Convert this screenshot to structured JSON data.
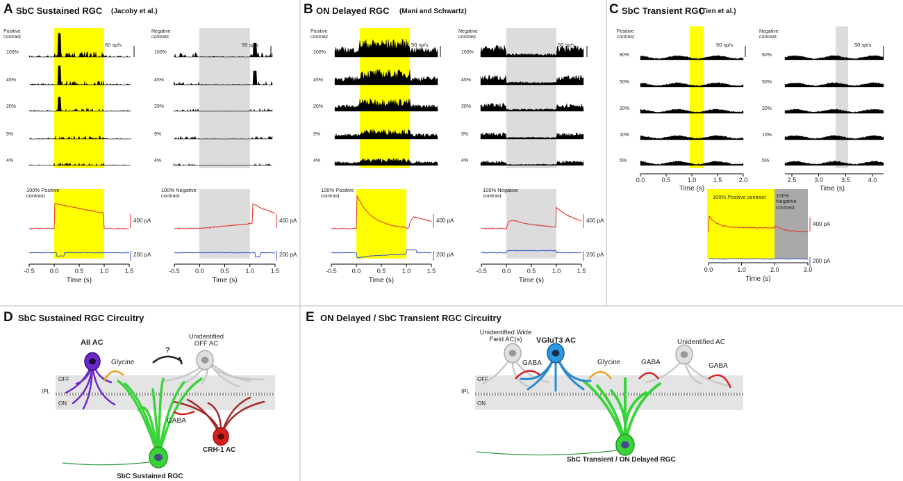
{
  "panels": [
    {
      "letter": "A",
      "title": "SbC Sustained RGC",
      "citation": "(Jacoby et al.)",
      "columns": [
        {
          "label": "Positive contrast",
          "scale": "50 sp/s"
        },
        {
          "label": "Negative contrast",
          "scale": "50 sp/s"
        }
      ],
      "rows": [
        "100%",
        "45%",
        "20%",
        "9%",
        "4%"
      ],
      "traces": [
        {
          "label": "100% Positive contrast",
          "scales": [
            "400 pA",
            "200 pA"
          ],
          "xlim": [
            -0.5,
            1.5
          ],
          "xticks": [
            -0.5,
            {
              "value": 0,
              "label": "0.0"
            },
            0.5,
            {
              "value": 1,
              "label": "1.0"
            },
            1.5
          ],
          "xlabel": "Time (s)"
        },
        {
          "label": "100% Negative contrast",
          "scales": [
            "400 pA",
            "200 pA"
          ],
          "xlim": [
            -0.5,
            1.5
          ],
          "xticks": [
            -0.5,
            {
              "value": 0,
              "label": "0.0"
            },
            0.5,
            {
              "value": 1,
              "label": "1.0"
            },
            1.5
          ],
          "xlabel": "Time (s)"
        }
      ]
    },
    {
      "letter": "B",
      "title": "ON Delayed RGC",
      "citation": "(Mani and Schwartz)",
      "columns": [
        {
          "label": "Positive contrast",
          "scale": "50 sp/s"
        },
        {
          "label": "Negative contrast",
          "scale": "50 sp/s"
        }
      ],
      "rows": [
        "100%",
        "45%",
        "20%",
        "9%",
        "4%"
      ],
      "traces": [
        {
          "label": "100% Positive contrast",
          "scales": [
            "400 pA",
            "200 pA"
          ],
          "xlim": [
            -0.5,
            1.5
          ],
          "xticks": [
            -0.5,
            {
              "value": 0,
              "label": "0.0"
            },
            0.5,
            {
              "value": 1,
              "label": "1.0"
            },
            1.5
          ],
          "xlabel": "Time (s)"
        },
        {
          "label": "100% Negative contrast",
          "scales": [
            "400 pA",
            "200 pA"
          ],
          "xlim": [
            -0.5,
            1.5
          ],
          "xticks": [
            -0.5,
            {
              "value": 0,
              "label": "0.0"
            },
            0.5,
            {
              "value": 1,
              "label": "1.0"
            },
            1.5
          ],
          "xlabel": "Time (s)"
        }
      ]
    },
    {
      "letter": "C",
      "title": "SbC Transient RGC",
      "citation": "(Tien et al.)",
      "columns": [
        {
          "label": "Positive contrast",
          "scale": "50 sp/s",
          "xlim": [
            0,
            2
          ],
          "xticks": [
            {
              "value": 0,
              "label": "0.0"
            },
            0.5,
            {
              "value": 1,
              "label": "1.0"
            },
            1.5,
            {
              "value": 2,
              "label": "2.0"
            }
          ],
          "xlabel": "Time (s)"
        },
        {
          "label": "Negative contrast",
          "scale": "50 sp/s",
          "xlim": [
            2.5,
            4
          ],
          "xticks": [
            2.5,
            {
              "value": 3,
              "label": "3.0"
            },
            3.5,
            {
              "value": 4,
              "label": "4.0"
            }
          ],
          "xlabel": "Time (s)"
        }
      ],
      "rows": [
        "80%",
        "50%",
        "20%",
        "10%",
        "5%"
      ],
      "traces": [
        {
          "label": "100% Positive contrast",
          "label2": "100% Negative contrast",
          "scales": [
            "400 pA",
            "200 pA"
          ],
          "xlim": [
            0,
            3
          ],
          "xticks": [
            {
              "value": 0,
              "label": "0.0"
            },
            {
              "value": 1,
              "label": "1.0"
            },
            {
              "value": 2,
              "label": "2.0"
            },
            {
              "value": 3,
              "label": "3.0"
            }
          ],
          "xlabel": "Time (s)"
        }
      ]
    }
  ],
  "circuitD": {
    "letter": "D",
    "title": "SbC Sustained RGC Circuitry",
    "labels": [
      "AII AC",
      "Glycine",
      "?",
      "Unidentified OFF AC",
      "OFF",
      "IPL",
      "ON",
      "GABA",
      "CRH-1 AC",
      "SbC Sustained RGC"
    ]
  },
  "circuitE": {
    "letter": "E",
    "title": "ON Delayed / SbC Transient RGC Circuitry",
    "labels": [
      "Unidentified Wide Field AC(s)",
      "VGluT3 AC",
      "GABA",
      "Glycine",
      "GABA",
      "Unidentified AC",
      "GABA",
      "OFF",
      "IPL",
      "ON",
      "SbC Transient / ON Delayed RGC"
    ]
  }
}
